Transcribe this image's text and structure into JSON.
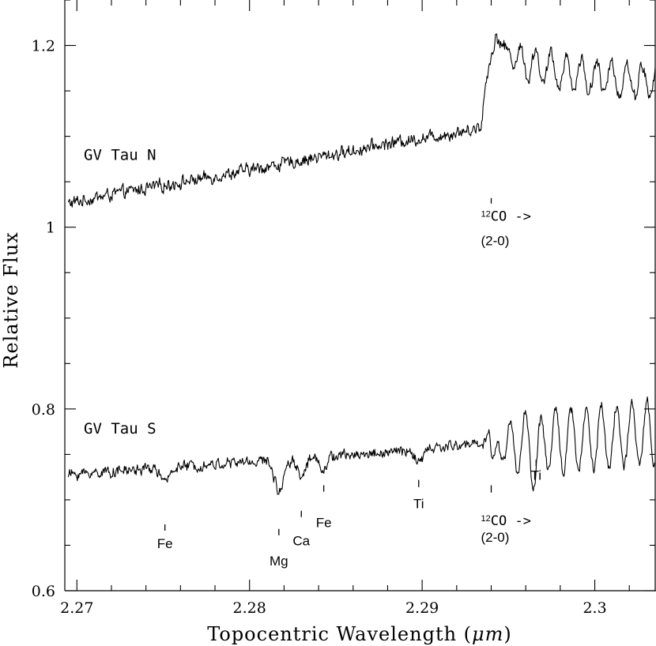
{
  "chart_data": {
    "type": "line",
    "xlabel_prefix": "Topocentric Wavelength (",
    "xlabel_unit": "μm",
    "xlabel_suffix": ")",
    "ylabel": "Relative Flux",
    "xlim": [
      2.2693,
      2.3035
    ],
    "ylim": [
      0.6,
      1.25
    ],
    "x_ticks": [
      2.27,
      2.28,
      2.29,
      2.3
    ],
    "x_tick_labels": [
      "2.27",
      "2.28",
      "2.29",
      "2.3"
    ],
    "x_minor_step": 0.002,
    "y_ticks": [
      0.6,
      0.8,
      1.0,
      1.2
    ],
    "y_tick_labels": [
      "0.6",
      "0.8",
      "1",
      "1.2"
    ],
    "y_minor_step": 0.05,
    "series": [
      {
        "name": "GV Tau N",
        "label": "GV Tau N",
        "x_start": 2.2695,
        "x_end": 2.3035,
        "anchors": [
          [
            2.2695,
            1.026
          ],
          [
            2.272,
            1.036
          ],
          [
            2.275,
            1.046
          ],
          [
            2.278,
            1.056
          ],
          [
            2.28,
            1.063
          ],
          [
            2.282,
            1.07
          ],
          [
            2.284,
            1.077
          ],
          [
            2.286,
            1.084
          ],
          [
            2.288,
            1.092
          ],
          [
            2.29,
            1.098
          ],
          [
            2.292,
            1.104
          ],
          [
            2.2934,
            1.11
          ],
          [
            2.2937,
            1.16
          ],
          [
            2.294,
            1.19
          ],
          [
            2.2943,
            1.21
          ],
          [
            2.2946,
            1.2
          ],
          [
            2.2955,
            1.185
          ],
          [
            2.297,
            1.175
          ],
          [
            2.3,
            1.165
          ],
          [
            2.3035,
            1.16
          ]
        ],
        "noise": 0.007,
        "osc_start": 2.2946,
        "osc_amp": 0.018
      },
      {
        "name": "GV Tau S",
        "label": "GV Tau S",
        "x_start": 2.2695,
        "x_end": 2.3035,
        "anchors": [
          [
            2.2695,
            0.728
          ],
          [
            2.275,
            0.735
          ],
          [
            2.28,
            0.742
          ],
          [
            2.285,
            0.748
          ],
          [
            2.29,
            0.755
          ],
          [
            2.293,
            0.762
          ],
          [
            2.295,
            0.76
          ],
          [
            2.297,
            0.765
          ],
          [
            2.3,
            0.768
          ],
          [
            2.3035,
            0.772
          ]
        ],
        "noise": 0.006,
        "osc_start": 2.294,
        "osc_amp": 0.035,
        "absorptions": [
          [
            2.2751,
            0.018,
            0.0003
          ],
          [
            2.2817,
            0.035,
            0.00035
          ],
          [
            2.283,
            0.02,
            0.0003
          ],
          [
            2.2843,
            0.012,
            0.0003
          ],
          [
            2.2898,
            0.015,
            0.0003
          ],
          [
            2.2966,
            0.022,
            0.0003
          ]
        ],
        "features": [
          [
            2.2939,
            0.045,
            0.0002
          ],
          [
            2.294,
            -0.04,
            0.00025
          ]
        ]
      }
    ],
    "annotations": [
      {
        "id": "co-n",
        "label": "12CO ->",
        "sup": "12",
        "text": "CO ->",
        "sub_text": "(2-0)",
        "x": 2.294,
        "mark_y": [
          1.026,
          1.032
        ],
        "text_y": 1.007,
        "sub_y": 0.98
      },
      {
        "id": "fe-1",
        "label": "Fe",
        "x": 2.2751,
        "mark_y": [
          0.666,
          0.673
        ],
        "text_y": 0.647
      },
      {
        "id": "mg",
        "label": "Mg",
        "x": 2.2817,
        "mark_y": [
          0.661,
          0.668
        ],
        "text_y": 0.628
      },
      {
        "id": "ca",
        "label": "Ca",
        "x": 2.283,
        "mark_y": [
          0.681,
          0.688
        ],
        "text_y": 0.65
      },
      {
        "id": "fe-2",
        "label": "Fe",
        "x": 2.2843,
        "mark_y": [
          0.709,
          0.716
        ],
        "text_y": 0.67
      },
      {
        "id": "ti-1",
        "label": "Ti",
        "x": 2.2898,
        "mark_y": [
          0.714,
          0.722
        ],
        "text_y": 0.691
      },
      {
        "id": "co-s",
        "label": "12CO ->",
        "sup": "12",
        "text": "CO ->",
        "sub_text": "(2-0)",
        "x": 2.294,
        "mark_y": [
          0.708,
          0.716
        ],
        "text_y": 0.672,
        "sub_y": 0.654
      },
      {
        "id": "ti-2",
        "label": "Ti",
        "x": 2.2966,
        "mark_y": [
          0.737,
          0.744
        ],
        "text_y": 0.722
      }
    ],
    "series_label_positions": [
      {
        "name": "GV Tau N",
        "x": 2.2704,
        "y": 1.074
      },
      {
        "name": "GV Tau S",
        "x": 2.2704,
        "y": 0.773
      }
    ]
  }
}
